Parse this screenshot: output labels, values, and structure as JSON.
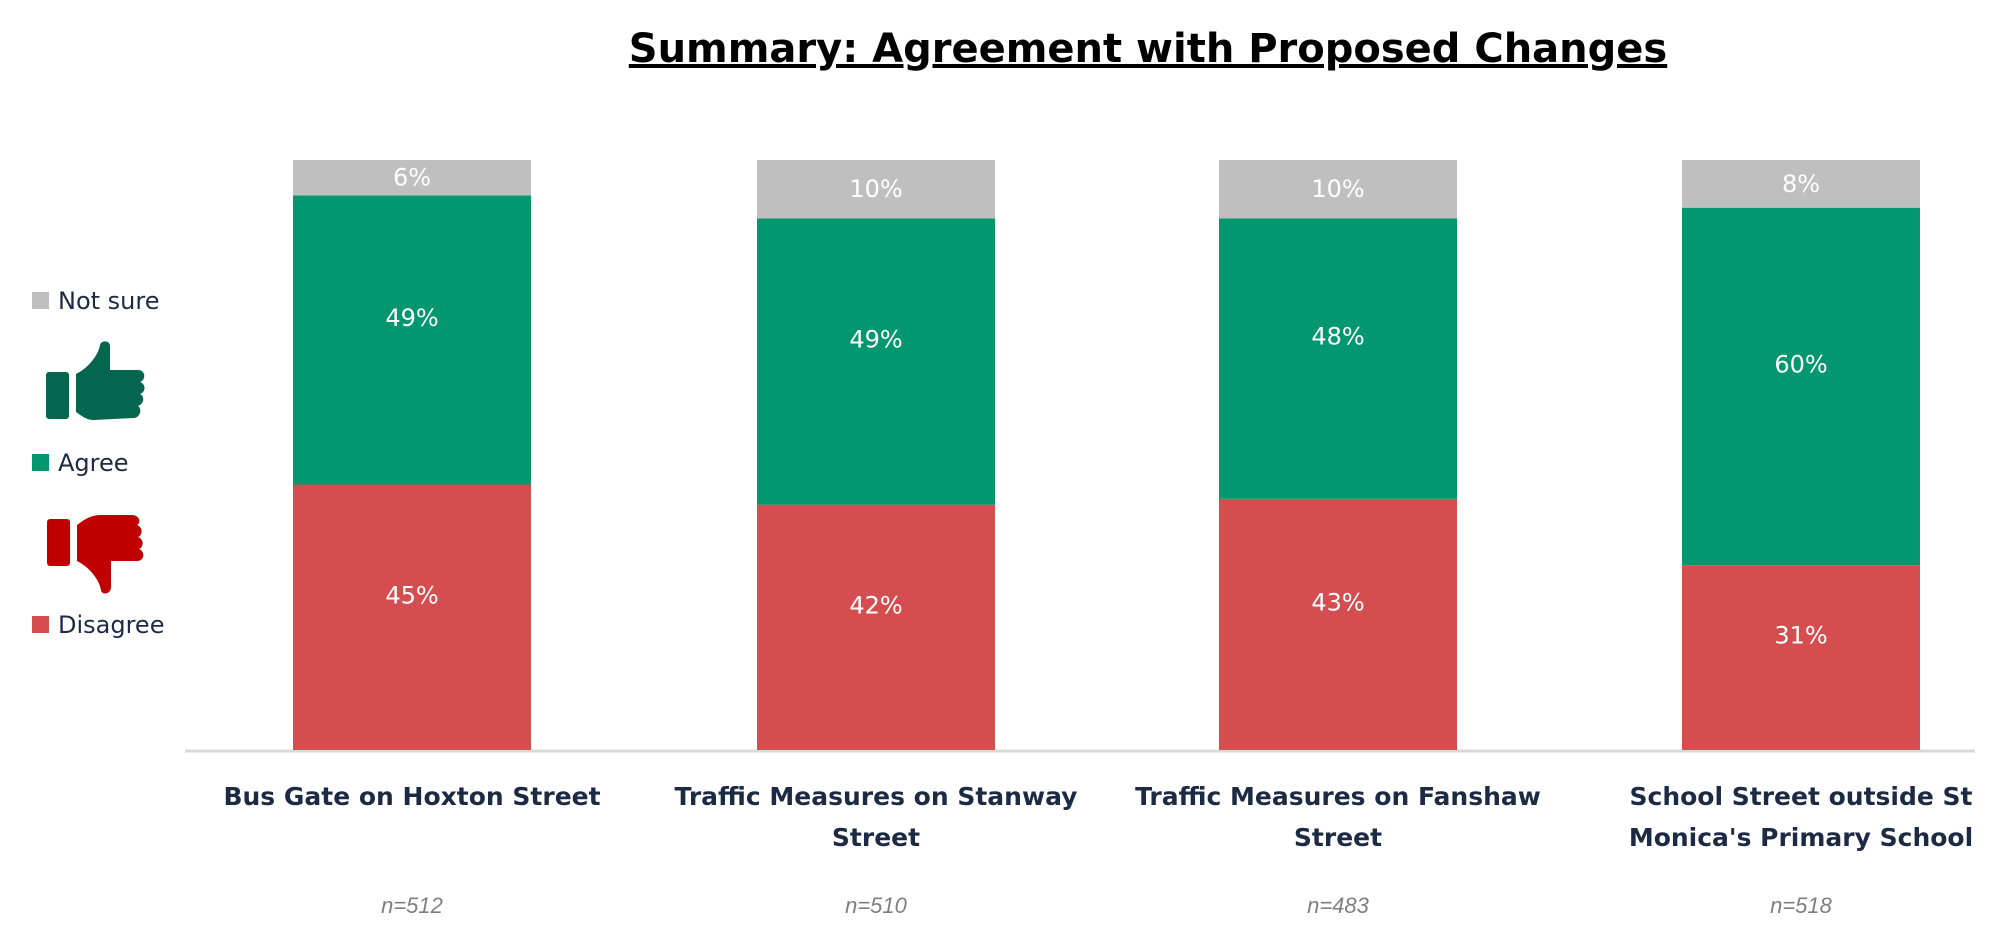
{
  "chart_data": {
    "type": "bar",
    "stacked": true,
    "title": "Summary: Agreement with Proposed Changes",
    "categories": [
      [
        "Bus Gate on Hoxton Street"
      ],
      [
        "Traffic Measures on Stanway",
        "Street"
      ],
      [
        "Traffic Measures on Fanshaw",
        "Street"
      ],
      [
        "School Street outside St",
        "Monica's Primary School"
      ]
    ],
    "sample_sizes": [
      "n=512",
      "n=510",
      "n=483",
      "n=518"
    ],
    "series": [
      {
        "name": "Disagree",
        "color": "#d44d4f",
        "values": [
          45,
          42,
          43,
          31
        ]
      },
      {
        "name": "Agree",
        "color": "#03976f",
        "values": [
          49,
          49,
          48,
          60
        ]
      },
      {
        "name": "Not sure",
        "color": "#bfbfbf",
        "values": [
          6,
          10,
          10,
          8
        ]
      }
    ],
    "value_suffix": "%",
    "legend": {
      "placement": "left",
      "order": [
        "Not sure",
        "Agree",
        "Disagree"
      ],
      "icons": {
        "agree": "thumbs-up-icon",
        "disagree": "thumbs-down-icon"
      },
      "icon_colors": {
        "agree": "#04664f",
        "disagree": "#c00000"
      }
    },
    "xlabel": "",
    "ylabel": "",
    "grid": false
  }
}
